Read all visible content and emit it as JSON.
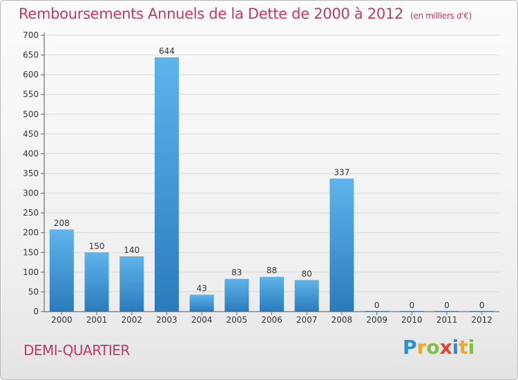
{
  "title": "Remboursements Annuels de la Dette de 2000 à 2012",
  "unit": "(en milliers d'€)",
  "city": "DEMI-QUARTIER",
  "logo": {
    "text": "Proxiti",
    "letters": [
      {
        "ch": "P",
        "color": "#2e8fd8"
      },
      {
        "ch": "r",
        "color": "#f5a623"
      },
      {
        "ch": "o",
        "color": "#7cc142"
      },
      {
        "ch": "x",
        "color": "#e2422f"
      },
      {
        "ch": "i",
        "color": "#2e8fd8"
      },
      {
        "ch": "t",
        "color": "#f5a623"
      },
      {
        "ch": "i",
        "color": "#7cc142"
      }
    ]
  },
  "colors": {
    "title": "#c0396a",
    "bar_top": "#5eb4ea",
    "bar_bottom": "#2a7bbd",
    "grid": "#d8d8d8"
  },
  "chart_data": {
    "type": "bar",
    "categories": [
      "2000",
      "2001",
      "2002",
      "2003",
      "2004",
      "2005",
      "2006",
      "2007",
      "2008",
      "2009",
      "2010",
      "2011",
      "2012"
    ],
    "values": [
      208,
      150,
      140,
      644,
      43,
      83,
      88,
      80,
      337,
      0,
      0,
      0,
      0
    ],
    "value_labels": [
      "208",
      "150",
      "140",
      "644",
      "43",
      "83",
      "88",
      "80",
      "337",
      "0",
      "0",
      "0",
      "0"
    ],
    "ylim": [
      0,
      700
    ],
    "yticks": [
      0,
      50,
      100,
      150,
      200,
      250,
      300,
      350,
      400,
      450,
      500,
      550,
      600,
      650,
      700
    ],
    "grid": true
  }
}
